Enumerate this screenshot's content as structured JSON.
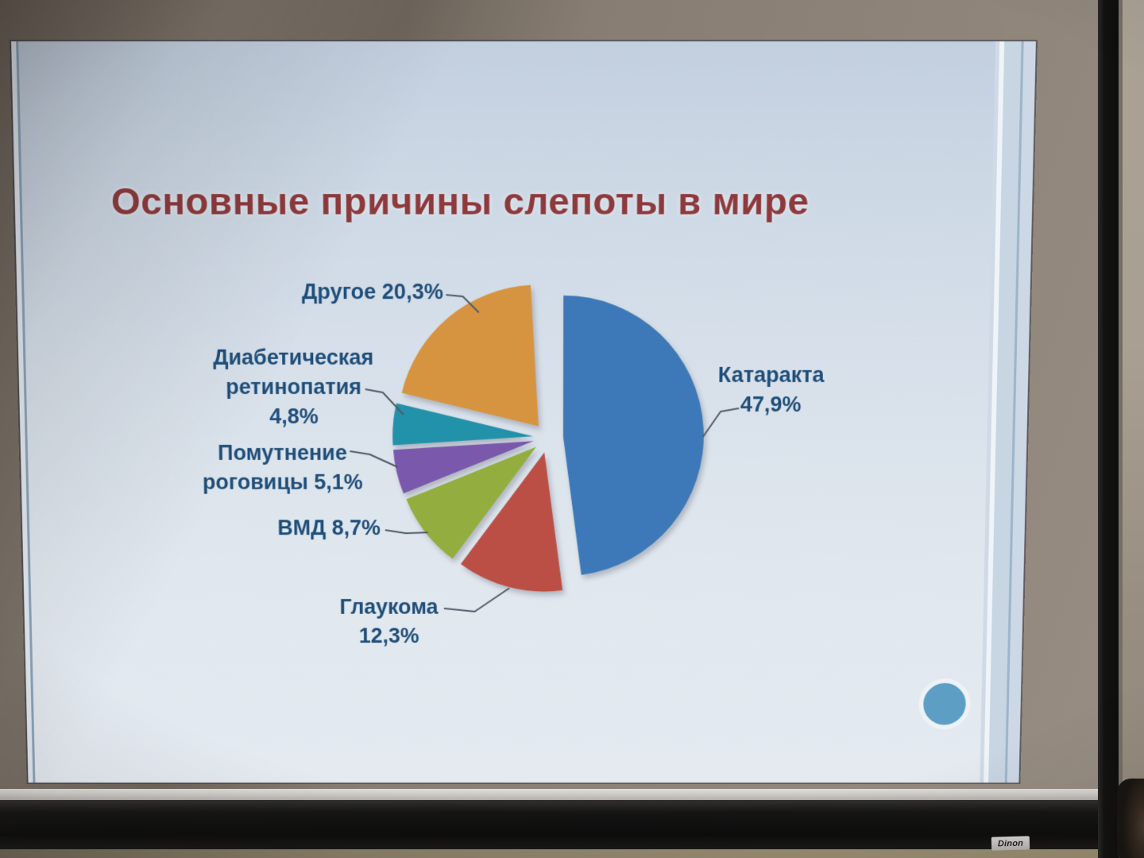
{
  "scene": {
    "brand_label": "Dinon"
  },
  "slide": {
    "title": "Основные причины слепоты в мире"
  },
  "chart_data": {
    "type": "pie",
    "title": "Основные причины слепоты в мире",
    "unit": "%",
    "direction": "clockwise",
    "start_angle_deg": 0,
    "exploded": true,
    "legend": "none",
    "slices": [
      {
        "label": "Катаракта",
        "value": 47.9,
        "value_text": "47,9%",
        "color": "#3d79b8"
      },
      {
        "label": "Глаукома",
        "value": 12.3,
        "value_text": "12,3%",
        "color": "#bc4f45"
      },
      {
        "label": "ВМД",
        "value": 8.7,
        "value_text": "8,7%",
        "color": "#93ae3f"
      },
      {
        "label": "Помутнение роговицы",
        "value": 5.1,
        "value_text": "5,1%",
        "color": "#7a58ab"
      },
      {
        "label": "Диабетическая ретинопатия",
        "value": 4.8,
        "value_text": "4,8%",
        "color": "#2291aa"
      },
      {
        "label": "Другое",
        "value": 20.3,
        "value_text": "20,3%",
        "color": "#d79440"
      }
    ],
    "colors": {
      "title": "#8d3a3c",
      "label_text": "#1f4e79",
      "leader_line": "#4e5a66",
      "slide_background": "#d8e1ea",
      "corner_circle": "#5d9ec5"
    }
  }
}
